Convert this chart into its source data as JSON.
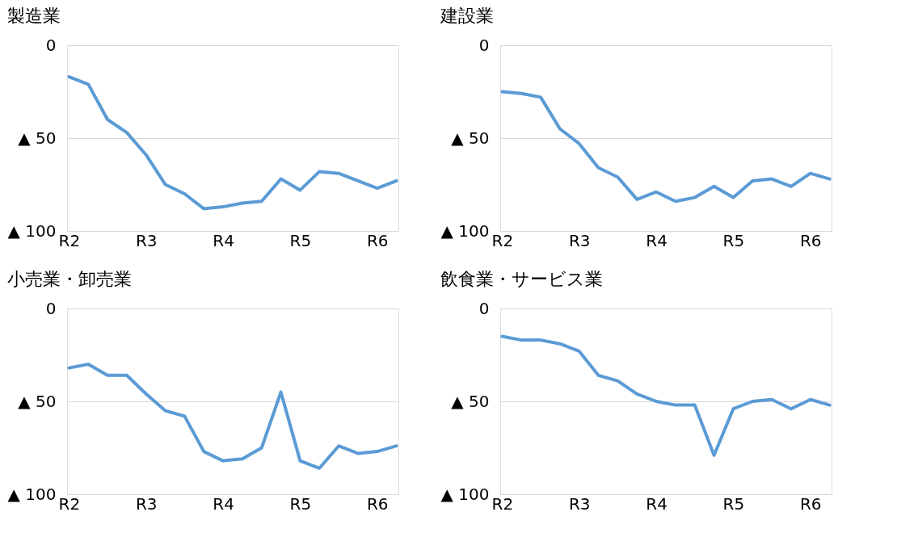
{
  "chart_data": [
    {
      "type": "line",
      "title": "製造業",
      "categories": [
        "R2",
        null,
        null,
        null,
        "R3",
        null,
        null,
        null,
        "R4",
        null,
        null,
        null,
        "R5",
        null,
        null,
        null,
        "R6",
        null
      ],
      "ylim": [
        -100,
        0
      ],
      "yticks": [
        {
          "value": 0,
          "label": "0"
        },
        {
          "value": -50,
          "label": "▲ 50"
        },
        {
          "value": -100,
          "label": "▲ 100"
        }
      ],
      "grid": "y",
      "series": [
        {
          "color": "#5b9bd5",
          "values": [
            -17,
            -21,
            -40,
            -47,
            -59,
            -75,
            -80,
            -88,
            -87,
            -85,
            -84,
            -72,
            -78,
            -68,
            -69,
            -73,
            -77,
            -73
          ]
        }
      ]
    },
    {
      "type": "line",
      "title": "建設業",
      "categories": [
        "R2",
        null,
        null,
        null,
        "R3",
        null,
        null,
        null,
        "R4",
        null,
        null,
        null,
        "R5",
        null,
        null,
        null,
        "R6",
        null
      ],
      "ylim": [
        -100,
        0
      ],
      "yticks": [
        {
          "value": 0,
          "label": "0"
        },
        {
          "value": -50,
          "label": "▲ 50"
        },
        {
          "value": -100,
          "label": "▲ 100"
        }
      ],
      "grid": "y",
      "series": [
        {
          "color": "#5b9bd5",
          "values": [
            -25,
            -26,
            -28,
            -45,
            -53,
            -66,
            -71,
            -83,
            -79,
            -84,
            -82,
            -76,
            -82,
            -73,
            -72,
            -76,
            -69,
            -72
          ]
        }
      ]
    },
    {
      "type": "line",
      "title": "小売業・卸売業",
      "categories": [
        "R2",
        null,
        null,
        null,
        "R3",
        null,
        null,
        null,
        "R4",
        null,
        null,
        null,
        "R5",
        null,
        null,
        null,
        "R6",
        null
      ],
      "ylim": [
        -100,
        0
      ],
      "yticks": [
        {
          "value": 0,
          "label": "0"
        },
        {
          "value": -50,
          "label": "▲ 50"
        },
        {
          "value": -100,
          "label": "▲ 100"
        }
      ],
      "grid": "y",
      "series": [
        {
          "color": "#5b9bd5",
          "values": [
            -32,
            -30,
            -36,
            -36,
            -46,
            -55,
            -58,
            -77,
            -82,
            -81,
            -75,
            -45,
            -82,
            -86,
            -74,
            -78,
            -77,
            -74
          ]
        }
      ]
    },
    {
      "type": "line",
      "title": "飲食業・サービス業",
      "categories": [
        "R2",
        null,
        null,
        null,
        "R3",
        null,
        null,
        null,
        "R4",
        null,
        null,
        null,
        "R5",
        null,
        null,
        null,
        "R6",
        null
      ],
      "ylim": [
        -100,
        0
      ],
      "yticks": [
        {
          "value": 0,
          "label": "0"
        },
        {
          "value": -50,
          "label": "▲ 50"
        },
        {
          "value": -100,
          "label": "▲ 100"
        }
      ],
      "grid": "y",
      "series": [
        {
          "color": "#5b9bd5",
          "values": [
            -15,
            -17,
            -17,
            -19,
            -23,
            -36,
            -39,
            -46,
            -50,
            -52,
            -52,
            -79,
            -54,
            -50,
            -49,
            -54,
            -49,
            -52
          ]
        }
      ]
    }
  ]
}
